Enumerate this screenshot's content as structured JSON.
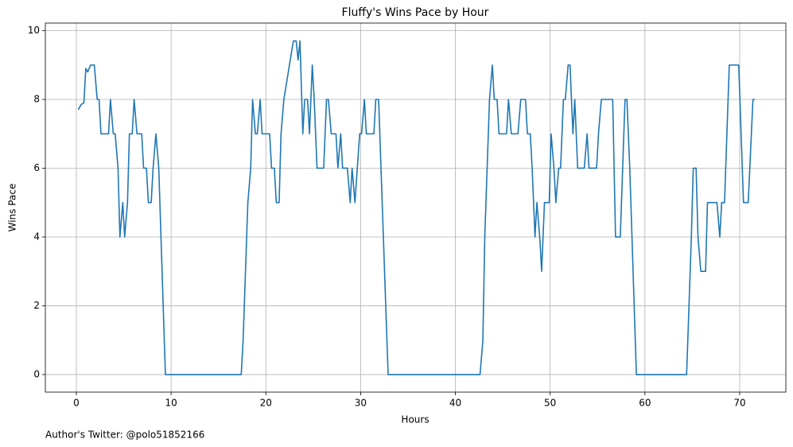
{
  "chart_data": {
    "type": "line",
    "title": "Fluffy's Wins Pace by Hour",
    "x_label": "Hours",
    "y_label": "Wins Pace",
    "annotation": "Author's Twitter: @polo51852166",
    "grid": true,
    "xlim": [
      -3.27,
      74.87
    ],
    "ylim": [
      -0.51,
      10.22
    ],
    "xticks": [
      0,
      10,
      20,
      30,
      40,
      50,
      60,
      70
    ],
    "yticks": [
      0,
      2,
      4,
      6,
      8,
      10
    ],
    "series": [
      {
        "name": "Wins Pace",
        "color": "#1f77b4",
        "x": [
          0.2,
          0.5,
          0.8,
          1.0,
          1.2,
          1.5,
          1.9,
          2.2,
          2.4,
          2.6,
          3.4,
          3.6,
          3.9,
          4.1,
          4.4,
          4.6,
          4.9,
          5.1,
          5.4,
          5.6,
          5.9,
          6.1,
          6.4,
          6.9,
          7.1,
          7.4,
          7.6,
          7.9,
          8.1,
          8.4,
          8.7,
          9.4,
          17.4,
          17.6,
          18.1,
          18.4,
          18.6,
          18.9,
          19.1,
          19.4,
          19.6,
          20.4,
          20.6,
          20.9,
          21.1,
          21.4,
          21.6,
          21.9,
          22.9,
          23.2,
          23.4,
          23.6,
          23.9,
          24.1,
          24.4,
          24.6,
          24.9,
          25.1,
          25.4,
          26.1,
          26.4,
          26.6,
          26.9,
          27.4,
          27.6,
          27.9,
          28.1,
          28.6,
          28.9,
          29.1,
          29.4,
          29.9,
          30.1,
          30.4,
          30.6,
          31.4,
          31.6,
          31.9,
          32.9,
          42.6,
          42.9,
          43.1,
          43.6,
          43.9,
          44.1,
          44.4,
          44.6,
          45.4,
          45.6,
          45.9,
          46.6,
          46.9,
          47.4,
          47.6,
          47.9,
          48.1,
          48.4,
          48.6,
          48.9,
          49.1,
          49.4,
          49.9,
          50.1,
          50.4,
          50.6,
          50.9,
          51.1,
          51.4,
          51.6,
          51.9,
          52.1,
          52.4,
          52.6,
          52.9,
          53.6,
          53.9,
          54.1,
          54.9,
          55.1,
          55.4,
          56.4,
          56.6,
          56.9,
          57.4,
          57.9,
          58.1,
          58.4,
          59.1,
          64.4,
          64.9,
          65.1,
          65.4,
          65.6,
          65.9,
          66.4,
          66.6,
          67.4,
          67.6,
          67.9,
          68.1,
          68.4,
          68.9,
          69.9,
          70.4,
          70.9,
          71.4,
          71.6
        ],
        "values": [
          7.7,
          7.85,
          7.9,
          8.9,
          8.8,
          9,
          9,
          8,
          8,
          7,
          7,
          8,
          7,
          7,
          6,
          4,
          5,
          4,
          5,
          7,
          7,
          8,
          7,
          7,
          6,
          6,
          5,
          5,
          6,
          7,
          6,
          0,
          0,
          1,
          5,
          6,
          8,
          7,
          7,
          8,
          7,
          7,
          6,
          6,
          5,
          5,
          7,
          8,
          9.7,
          9.7,
          9.15,
          9.7,
          7,
          8,
          8,
          7,
          9,
          8,
          6,
          6,
          8,
          8,
          7,
          7,
          6,
          7,
          6,
          6,
          5,
          6,
          5,
          7,
          7,
          8,
          7,
          7,
          8,
          8,
          0,
          0,
          1,
          4,
          8,
          9,
          8,
          8,
          7,
          7,
          8,
          7,
          7,
          8,
          8,
          7,
          7,
          6,
          4,
          5,
          4,
          3,
          5,
          5,
          7,
          6,
          5,
          6,
          6,
          8,
          8,
          9,
          9,
          7,
          8,
          6,
          6,
          7,
          6,
          6,
          7,
          8,
          8,
          8,
          4,
          4,
          8,
          8,
          6,
          0,
          0,
          4,
          6,
          6,
          4,
          3,
          3,
          5,
          5,
          5,
          4,
          5,
          5,
          9,
          9,
          5,
          5,
          8,
          8
        ]
      }
    ]
  }
}
